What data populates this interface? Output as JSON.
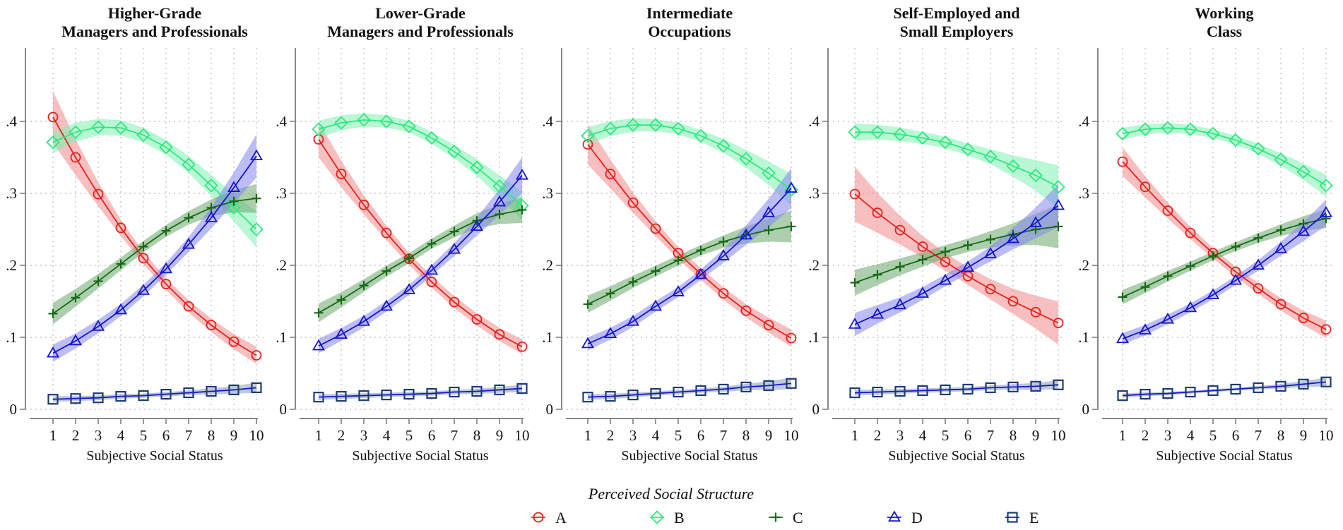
{
  "chart_data": {
    "type": "line",
    "xlabel": "Subjective Social Status",
    "ylabel": "",
    "x": [
      1,
      2,
      3,
      4,
      5,
      6,
      7,
      8,
      9,
      10
    ],
    "xticks": [
      "1",
      "2",
      "3",
      "4",
      "5",
      "6",
      "7",
      "8",
      "9",
      "10"
    ],
    "ylim": [
      0,
      0.5
    ],
    "yticks": [
      {
        "v": 0,
        "label": "0"
      },
      {
        "v": 0.1,
        "label": ".1"
      },
      {
        "v": 0.2,
        "label": ".2"
      },
      {
        "v": 0.3,
        "label": ".3"
      },
      {
        "v": 0.4,
        "label": ".4"
      }
    ],
    "grid": true,
    "legend": {
      "title": "Perceived Social Structure",
      "placement": "bottom-center",
      "entries": [
        "A",
        "B",
        "C",
        "D",
        "E"
      ]
    },
    "series_style": {
      "A": {
        "color": "#e8211c",
        "band": "#f08a8a",
        "marker": "circle"
      },
      "B": {
        "color": "#2ee87f",
        "band": "#7ff0b2",
        "marker": "diamond"
      },
      "C": {
        "color": "#166b16",
        "band": "#6aa86a",
        "marker": "plus"
      },
      "D": {
        "color": "#1515d0",
        "band": "#8585f0",
        "marker": "triangle"
      },
      "E": {
        "color": "#1c3c78",
        "band": "#8a9dbc",
        "marker": "square"
      }
    },
    "panels": [
      {
        "title": [
          "Higher-Grade",
          "Managers and Professionals"
        ],
        "series": [
          {
            "name": "A",
            "values": [
              0.406,
              0.35,
              0.299,
              0.252,
              0.21,
              0.174,
              0.143,
              0.117,
              0.094,
              0.075
            ],
            "ci": [
              0.036,
              0.008,
              0.012
            ]
          },
          {
            "name": "B",
            "values": [
              0.371,
              0.385,
              0.392,
              0.391,
              0.381,
              0.364,
              0.34,
              0.311,
              0.28,
              0.25
            ],
            "ci": [
              0.015,
              0.01,
              0.025
            ]
          },
          {
            "name": "C",
            "values": [
              0.133,
              0.155,
              0.178,
              0.202,
              0.226,
              0.248,
              0.266,
              0.28,
              0.289,
              0.293
            ],
            "ci": [
              0.015,
              0.008,
              0.02
            ]
          },
          {
            "name": "D",
            "values": [
              0.078,
              0.095,
              0.115,
              0.138,
              0.165,
              0.195,
              0.229,
              0.266,
              0.308,
              0.352
            ],
            "ci": [
              0.012,
              0.008,
              0.03
            ]
          },
          {
            "name": "E",
            "values": [
              0.014,
              0.015,
              0.016,
              0.018,
              0.019,
              0.021,
              0.023,
              0.025,
              0.027,
              0.03
            ],
            "ci": [
              0.004,
              0.003,
              0.007
            ]
          }
        ]
      },
      {
        "title": [
          "Lower-Grade",
          "Managers and Professionals"
        ],
        "series": [
          {
            "name": "A",
            "values": [
              0.375,
              0.327,
              0.284,
              0.245,
              0.209,
              0.177,
              0.149,
              0.125,
              0.104,
              0.087
            ],
            "ci": [
              0.025,
              0.008,
              0.01
            ]
          },
          {
            "name": "B",
            "values": [
              0.389,
              0.398,
              0.402,
              0.4,
              0.393,
              0.377,
              0.358,
              0.336,
              0.31,
              0.283
            ],
            "ci": [
              0.012,
              0.008,
              0.02
            ]
          },
          {
            "name": "C",
            "values": [
              0.134,
              0.152,
              0.172,
              0.192,
              0.21,
              0.23,
              0.247,
              0.262,
              0.271,
              0.277
            ],
            "ci": [
              0.013,
              0.007,
              0.018
            ]
          },
          {
            "name": "D",
            "values": [
              0.088,
              0.104,
              0.122,
              0.143,
              0.166,
              0.193,
              0.222,
              0.254,
              0.288,
              0.325
            ],
            "ci": [
              0.01,
              0.007,
              0.025
            ]
          },
          {
            "name": "E",
            "values": [
              0.017,
              0.018,
              0.019,
              0.02,
              0.021,
              0.022,
              0.024,
              0.025,
              0.027,
              0.029
            ],
            "ci": [
              0.004,
              0.003,
              0.005
            ]
          }
        ]
      },
      {
        "title": [
          "Intermediate",
          "Occupations"
        ],
        "series": [
          {
            "name": "A",
            "values": [
              0.368,
              0.327,
              0.287,
              0.251,
              0.217,
              0.188,
              0.161,
              0.137,
              0.117,
              0.099
            ],
            "ci": [
              0.028,
              0.008,
              0.012
            ]
          },
          {
            "name": "B",
            "values": [
              0.38,
              0.39,
              0.395,
              0.395,
              0.39,
              0.38,
              0.366,
              0.348,
              0.328,
              0.305
            ],
            "ci": [
              0.012,
              0.008,
              0.022
            ]
          },
          {
            "name": "C",
            "values": [
              0.146,
              0.161,
              0.177,
              0.192,
              0.207,
              0.221,
              0.233,
              0.242,
              0.249,
              0.254
            ],
            "ci": [
              0.012,
              0.007,
              0.022
            ]
          },
          {
            "name": "D",
            "values": [
              0.091,
              0.105,
              0.122,
              0.143,
              0.163,
              0.187,
              0.213,
              0.242,
              0.273,
              0.307
            ],
            "ci": [
              0.009,
              0.007,
              0.028
            ]
          },
          {
            "name": "E",
            "values": [
              0.017,
              0.018,
              0.02,
              0.022,
              0.024,
              0.026,
              0.028,
              0.031,
              0.033,
              0.036
            ],
            "ci": [
              0.004,
              0.003,
              0.008
            ]
          }
        ]
      },
      {
        "title": [
          "Self-Employed and",
          "Small Employers"
        ],
        "series": [
          {
            "name": "A",
            "values": [
              0.299,
              0.273,
              0.249,
              0.226,
              0.205,
              0.185,
              0.167,
              0.15,
              0.135,
              0.12
            ],
            "ci": [
              0.038,
              0.012,
              0.03
            ]
          },
          {
            "name": "B",
            "values": [
              0.385,
              0.385,
              0.382,
              0.377,
              0.371,
              0.361,
              0.351,
              0.338,
              0.325,
              0.309
            ],
            "ci": [
              0.012,
              0.008,
              0.03
            ]
          },
          {
            "name": "C",
            "values": [
              0.176,
              0.187,
              0.198,
              0.208,
              0.219,
              0.228,
              0.236,
              0.243,
              0.25,
              0.254
            ],
            "ci": [
              0.018,
              0.009,
              0.03
            ]
          },
          {
            "name": "D",
            "values": [
              0.118,
              0.132,
              0.145,
              0.161,
              0.179,
              0.197,
              0.216,
              0.237,
              0.259,
              0.283
            ],
            "ci": [
              0.016,
              0.008,
              0.03
            ]
          },
          {
            "name": "E",
            "values": [
              0.023,
              0.024,
              0.025,
              0.026,
              0.027,
              0.028,
              0.03,
              0.031,
              0.032,
              0.034
            ],
            "ci": [
              0.004,
              0.003,
              0.006
            ]
          }
        ]
      },
      {
        "title": [
          "Working",
          "Class"
        ],
        "series": [
          {
            "name": "A",
            "values": [
              0.344,
              0.309,
              0.276,
              0.245,
              0.217,
              0.191,
              0.168,
              0.146,
              0.127,
              0.111
            ],
            "ci": [
              0.02,
              0.007,
              0.012
            ]
          },
          {
            "name": "B",
            "values": [
              0.383,
              0.389,
              0.391,
              0.389,
              0.383,
              0.374,
              0.362,
              0.347,
              0.33,
              0.311
            ],
            "ci": [
              0.008,
              0.006,
              0.015
            ]
          },
          {
            "name": "C",
            "values": [
              0.156,
              0.17,
              0.185,
              0.199,
              0.213,
              0.226,
              0.238,
              0.249,
              0.258,
              0.265
            ],
            "ci": [
              0.01,
              0.006,
              0.013
            ]
          },
          {
            "name": "D",
            "values": [
              0.098,
              0.11,
              0.125,
              0.141,
              0.159,
              0.179,
              0.2,
              0.223,
              0.247,
              0.273
            ],
            "ci": [
              0.008,
              0.006,
              0.018
            ]
          },
          {
            "name": "E",
            "values": [
              0.019,
              0.021,
              0.022,
              0.024,
              0.026,
              0.028,
              0.03,
              0.032,
              0.035,
              0.038
            ],
            "ci": [
              0.003,
              0.002,
              0.006
            ]
          }
        ]
      }
    ]
  }
}
